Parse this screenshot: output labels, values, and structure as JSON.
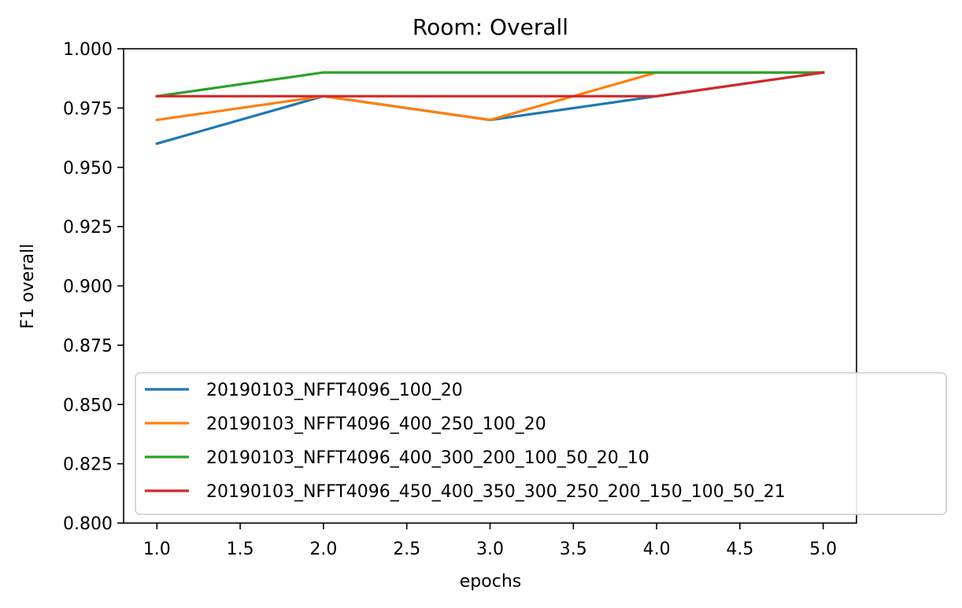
{
  "chart_data": {
    "type": "line",
    "title": "Room: Overall",
    "xlabel": "epochs",
    "ylabel": "F1 overall",
    "xlim": [
      0.8,
      5.2
    ],
    "ylim": [
      0.8,
      1.0
    ],
    "x_ticks": [
      "1.0",
      "1.5",
      "2.0",
      "2.5",
      "3.0",
      "3.5",
      "4.0",
      "4.5",
      "5.0"
    ],
    "y_ticks": [
      "0.800",
      "0.825",
      "0.850",
      "0.875",
      "0.900",
      "0.925",
      "0.950",
      "0.975",
      "1.000"
    ],
    "grid": false,
    "legend_position": "lower-right",
    "x": [
      1,
      2,
      3,
      4,
      5
    ],
    "series": [
      {
        "name": "20190103_NFFT4096_100_20",
        "color": "#1f77b4",
        "values": [
          0.96,
          0.98,
          0.97,
          0.98,
          0.99
        ]
      },
      {
        "name": "20190103_NFFT4096_400_250_100_20",
        "color": "#ff7f0e",
        "values": [
          0.97,
          0.98,
          0.97,
          0.99,
          0.99
        ]
      },
      {
        "name": "20190103_NFFT4096_400_300_200_100_50_20_10",
        "color": "#2ca02c",
        "values": [
          0.98,
          0.99,
          0.99,
          0.99,
          0.99
        ]
      },
      {
        "name": "20190103_NFFT4096_450_400_350_300_250_200_150_100_50_21",
        "color": "#d62728",
        "values": [
          0.98,
          0.98,
          0.98,
          0.98,
          0.99
        ]
      }
    ]
  }
}
